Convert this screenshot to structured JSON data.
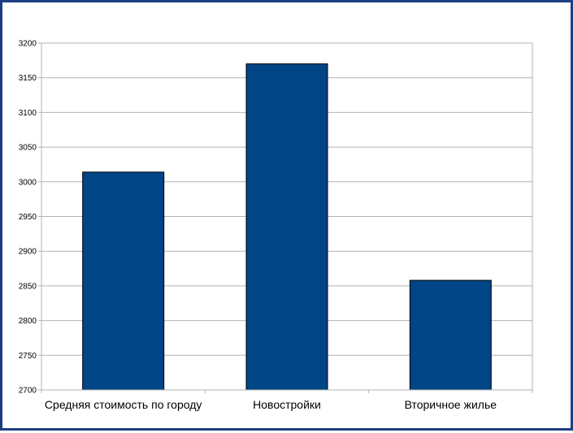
{
  "chart_data": {
    "type": "bar",
    "categories": [
      "Средняя стоимость по городу",
      "Новостройки",
      "Вторичное жилье"
    ],
    "values": [
      3014,
      3170,
      2858
    ],
    "title": "",
    "xlabel": "",
    "ylabel": "",
    "ylim": [
      2700,
      3200
    ],
    "yticks": [
      2700,
      2750,
      2800,
      2850,
      2900,
      2950,
      3000,
      3050,
      3100,
      3150,
      3200
    ],
    "grid": true,
    "legend": "none",
    "colors": {
      "bar_fill": "#004586",
      "bar_stroke": "#000000",
      "grid": "#b3b3b3",
      "frame": "#1d3f82"
    }
  }
}
